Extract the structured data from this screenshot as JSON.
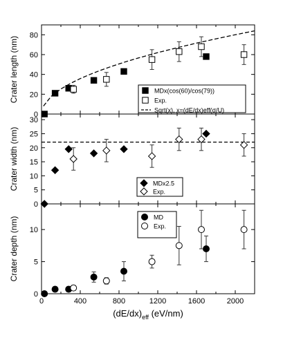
{
  "chart_data": [
    {
      "type": "scatter",
      "ylabel": "Crater length (nm)",
      "xlim": [
        0,
        2200
      ],
      "ylim": [
        0,
        90
      ],
      "yticks": [
        0,
        20,
        40,
        60,
        80
      ],
      "grid": false,
      "legend_position": "bottom-right",
      "series": [
        {
          "name": "MDx(cos(60)/cos(79))",
          "marker": "filled-square",
          "points": [
            {
              "x": 30,
              "y": 0
            },
            {
              "x": 140,
              "y": 21
            },
            {
              "x": 280,
              "y": 26
            },
            {
              "x": 540,
              "y": 34
            },
            {
              "x": 850,
              "y": 43
            },
            {
              "x": 1700,
              "y": 58
            }
          ]
        },
        {
          "name": "Exp.",
          "marker": "open-square",
          "points": [
            {
              "x": 330,
              "y": 25,
              "err": 4
            },
            {
              "x": 670,
              "y": 35,
              "err": 7
            },
            {
              "x": 1140,
              "y": 55,
              "err": 10
            },
            {
              "x": 1420,
              "y": 63,
              "err": 10
            },
            {
              "x": 1650,
              "y": 68,
              "err": 10
            },
            {
              "x": 2090,
              "y": 60,
              "err": 10
            }
          ]
        },
        {
          "name": "Sqrt(x), x=(dE/dx)eff(σ/U)",
          "marker": "dashed-line",
          "function": "sqrt",
          "x": [
            20,
            100,
            200,
            300,
            400,
            500,
            600,
            700,
            800,
            900,
            1000,
            1200,
            1400,
            1600,
            1800,
            2000,
            2200
          ],
          "y": [
            8,
            17.9,
            25.3,
            31,
            35.8,
            40,
            43.8,
            47.3,
            50.6,
            53.7,
            56.6,
            62,
            66.9,
            71.6,
            75.9,
            80,
            84
          ]
        }
      ]
    },
    {
      "type": "scatter",
      "ylabel": "Crater width (nm)",
      "xlim": [
        0,
        2200
      ],
      "ylim": [
        0,
        32
      ],
      "yticks": [
        0,
        5,
        10,
        15,
        20,
        25,
        30
      ],
      "grid": false,
      "legend_position": "bottom-center",
      "reference_line": {
        "y": 22,
        "style": "dashed"
      },
      "series": [
        {
          "name": "MDx2.5",
          "marker": "filled-diamond",
          "points": [
            {
              "x": 30,
              "y": 0
            },
            {
              "x": 140,
              "y": 12
            },
            {
              "x": 280,
              "y": 19.5
            },
            {
              "x": 540,
              "y": 18
            },
            {
              "x": 850,
              "y": 19.5
            },
            {
              "x": 1700,
              "y": 25
            }
          ]
        },
        {
          "name": "Exp.",
          "marker": "open-diamond",
          "points": [
            {
              "x": 330,
              "y": 16,
              "err": 4
            },
            {
              "x": 670,
              "y": 19,
              "err": 4
            },
            {
              "x": 1140,
              "y": 17,
              "err": 4
            },
            {
              "x": 1420,
              "y": 23,
              "err": 4
            },
            {
              "x": 1650,
              "y": 23,
              "err": 4
            },
            {
              "x": 2090,
              "y": 21,
              "err": 4
            }
          ]
        }
      ]
    },
    {
      "type": "scatter",
      "ylabel": "Crater depth (nm)",
      "xlabel_main": "(dE/dx)",
      "xlabel_sub": "eff",
      "xlabel_unit": " (eV/nm)",
      "xticks": [
        0,
        400,
        800,
        1200,
        1600,
        2000
      ],
      "xlim": [
        0,
        2200
      ],
      "ylim": [
        0,
        14
      ],
      "yticks": [
        0,
        5,
        10
      ],
      "grid": false,
      "legend_position": "top-center",
      "series": [
        {
          "name": "MD",
          "marker": "filled-circle",
          "points": [
            {
              "x": 30,
              "y": 0
            },
            {
              "x": 140,
              "y": 0.7,
              "err": 0.4
            },
            {
              "x": 280,
              "y": 0.7,
              "err": 0.4
            },
            {
              "x": 540,
              "y": 2.6,
              "err": 0.8
            },
            {
              "x": 850,
              "y": 3.5,
              "err": 1.5
            },
            {
              "x": 1700,
              "y": 7,
              "err": 2
            }
          ]
        },
        {
          "name": "Exp.",
          "marker": "open-circle",
          "points": [
            {
              "x": 330,
              "y": 0.9,
              "err": 0.4
            },
            {
              "x": 670,
              "y": 2,
              "err": 0.5
            },
            {
              "x": 1140,
              "y": 5,
              "err": 1
            },
            {
              "x": 1420,
              "y": 7.5,
              "err": 3
            },
            {
              "x": 1650,
              "y": 10,
              "err": 3
            },
            {
              "x": 2090,
              "y": 10,
              "err": 3
            }
          ]
        }
      ]
    }
  ]
}
